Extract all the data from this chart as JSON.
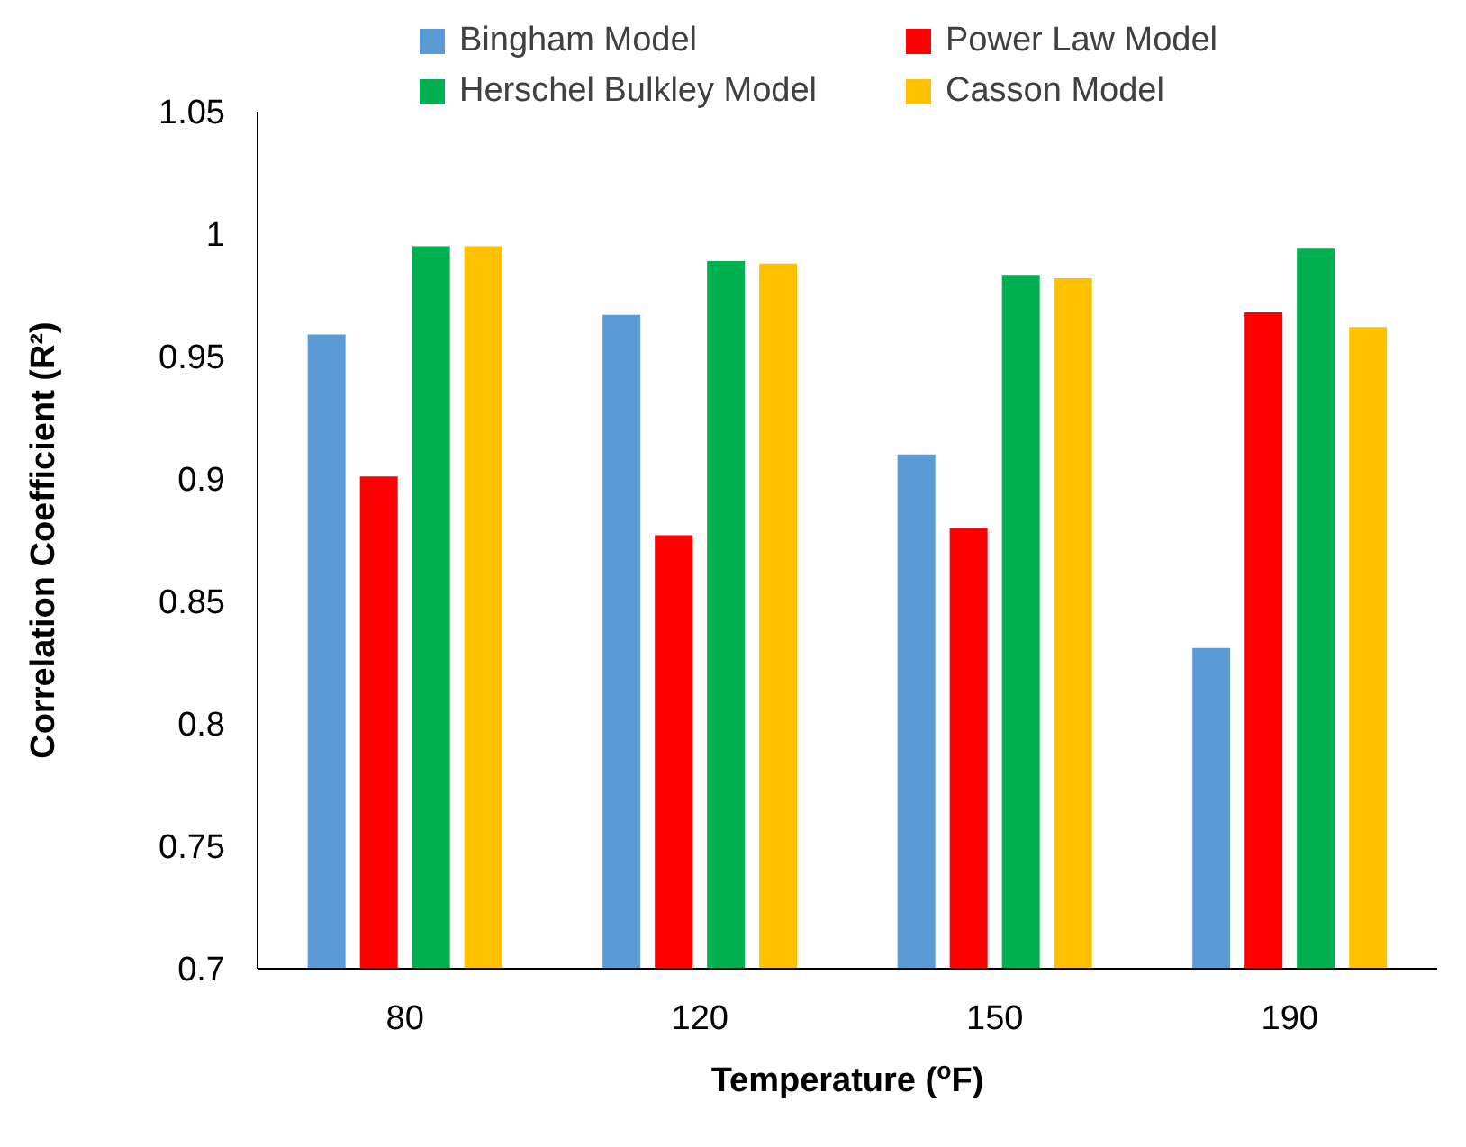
{
  "chart_data": {
    "type": "bar",
    "xlabel": "Temperature ($^{o}$F)",
    "ylabel": "Correlation Coefficient (R²)",
    "categories": [
      "80",
      "120",
      "150",
      "190"
    ],
    "series": [
      {
        "name": "Bingham Model",
        "color": "#5b9bd5",
        "values": [
          0.959,
          0.967,
          0.91,
          0.831
        ]
      },
      {
        "name": "Power Law Model",
        "color": "#ff0000",
        "values": [
          0.901,
          0.877,
          0.88,
          0.968
        ]
      },
      {
        "name": "Herschel Bulkley Model",
        "color": "#00b050",
        "values": [
          0.995,
          0.989,
          0.983,
          0.994
        ]
      },
      {
        "name": "Casson Model",
        "color": "#ffc000",
        "values": [
          0.995,
          0.988,
          0.982,
          0.962
        ]
      }
    ],
    "ylim": [
      0.7,
      1.05
    ],
    "yticks": [
      0.7,
      0.75,
      0.8,
      0.85,
      0.9,
      0.95,
      1,
      1.05
    ],
    "grid": false,
    "legend": "top"
  }
}
